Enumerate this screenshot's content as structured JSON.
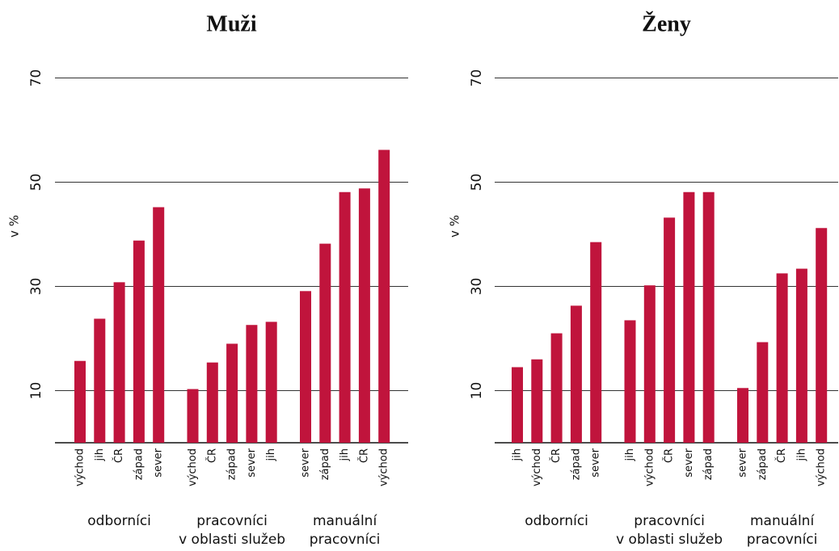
{
  "chart_data": [
    {
      "type": "bar",
      "title": "Muži",
      "ylabel": "v %",
      "color": "#c0143c",
      "ylim": [
        0,
        70
      ],
      "yticks": [
        10,
        30,
        50,
        70
      ],
      "grid": true,
      "groups": [
        {
          "label_lines": [
            "odborníci"
          ],
          "categories": [
            "východ",
            "jih",
            "ČR",
            "západ",
            "sever"
          ],
          "values": [
            15.7,
            23.8,
            30.8,
            38.8,
            45.2
          ]
        },
        {
          "label_lines": [
            "pracovníci",
            "v oblasti služeb"
          ],
          "categories": [
            "východ",
            "ČR",
            "západ",
            "sever",
            "jih"
          ],
          "values": [
            10.3,
            15.4,
            19.0,
            22.6,
            23.2
          ]
        },
        {
          "label_lines": [
            "manuální",
            "pracovníci"
          ],
          "categories": [
            "sever",
            "západ",
            "jih",
            "ČR",
            "východ"
          ],
          "values": [
            29.1,
            38.2,
            48.1,
            48.8,
            56.2
          ]
        }
      ]
    },
    {
      "type": "bar",
      "title": "Ženy",
      "ylabel": "v %",
      "color": "#c0143c",
      "ylim": [
        0,
        70
      ],
      "yticks": [
        10,
        30,
        50,
        70
      ],
      "grid": true,
      "groups": [
        {
          "label_lines": [
            "odborníci"
          ],
          "categories": [
            "jih",
            "východ",
            "ČR",
            "západ",
            "sever"
          ],
          "values": [
            14.5,
            16.0,
            21.0,
            26.3,
            38.5
          ]
        },
        {
          "label_lines": [
            "pracovníci",
            "v oblasti služeb"
          ],
          "categories": [
            "jih",
            "východ",
            "ČR",
            "sever",
            "západ"
          ],
          "values": [
            23.5,
            30.2,
            43.2,
            48.1,
            48.1
          ]
        },
        {
          "label_lines": [
            "manuální",
            "pracovníci"
          ],
          "categories": [
            "sever",
            "západ",
            "ČR",
            "jih",
            "východ"
          ],
          "values": [
            10.5,
            19.3,
            32.5,
            33.4,
            41.2
          ]
        }
      ]
    }
  ]
}
